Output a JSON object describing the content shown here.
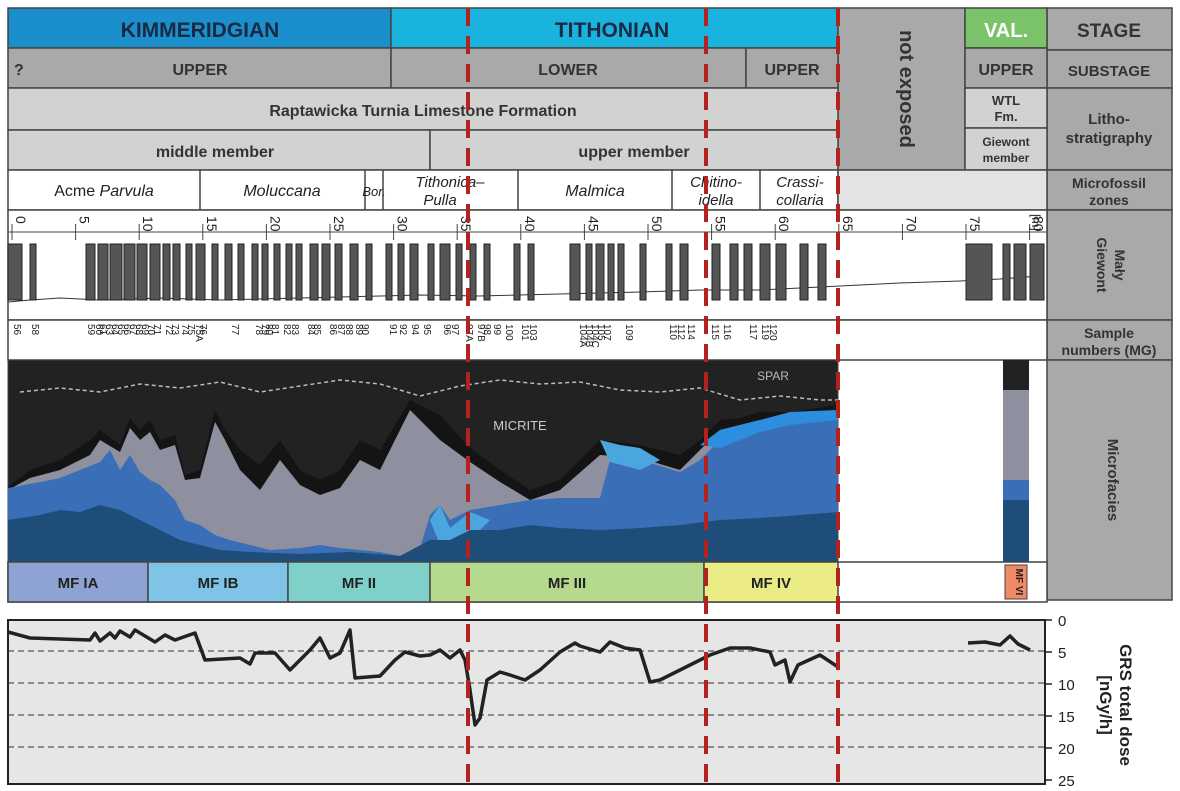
{
  "header": {
    "stages": [
      {
        "label": "KIMMERIDGIAN",
        "color": "#1a8fcc"
      },
      {
        "label": "TITHONIAN",
        "color": "#1ab3dd"
      },
      {
        "label": "VAL.",
        "color": "#7ac36a"
      }
    ],
    "not_exposed": "not exposed",
    "substages": [
      "?",
      "UPPER",
      "LOWER",
      "UPPER",
      "UPPER"
    ],
    "formation": "Raptawicka Turnia Limestone Formation",
    "wtl": [
      "WTL",
      "Fm."
    ],
    "members": [
      "middle member",
      "upper member"
    ],
    "giewont_member": [
      "Giewont",
      "member"
    ]
  },
  "right_column": {
    "stage": "STAGE",
    "substage": "SUBSTAGE",
    "litho": [
      "Litho-",
      "stratigraphy"
    ],
    "microfossil": [
      "Microfossil",
      "zones"
    ],
    "maly": [
      "Mały",
      "Giewont"
    ],
    "sample": [
      "Sample",
      "numbers (MG)"
    ],
    "microfacies": "Microfacies"
  },
  "zones": [
    {
      "label": "Acme ",
      "italic": "Parvula"
    },
    {
      "label": "",
      "italic": "Moluccana"
    },
    {
      "label": "",
      "italic": "Bor."
    },
    {
      "label": "",
      "italic": "Tithonica–",
      "italic2": "Pulla"
    },
    {
      "label": "",
      "italic": "Malmica"
    },
    {
      "label": "",
      "italic": "Chitino-",
      "italic2": "idella"
    },
    {
      "label": "",
      "italic": "Crassi-",
      "italic2": "collaria"
    }
  ],
  "scale": {
    "ticks": [
      "0",
      "5",
      "10",
      "15",
      "20",
      "25",
      "30",
      "35",
      "40",
      "45",
      "50",
      "55",
      "60",
      "65",
      "70",
      "75",
      "80"
    ],
    "unit": "[m]"
  },
  "samples": {
    "row1": [
      "56",
      "58",
      "59",
      "60",
      "61",
      "63",
      "64",
      "65",
      "66",
      "67",
      "68",
      "69",
      "70",
      "71",
      "72",
      "73",
      "74",
      "75",
      "75A",
      "76",
      "77",
      "78",
      "79",
      "80",
      "81",
      "82",
      "83",
      "84",
      "85",
      "86",
      "87",
      "88",
      "89",
      "90",
      "91",
      "92",
      "94",
      "95",
      "96",
      "97",
      "97A",
      "97B",
      "98",
      "99",
      "100",
      "101",
      "103",
      "104A",
      "104B",
      "104C",
      "105",
      "107",
      "109",
      "110",
      "112",
      "114",
      "115",
      "116",
      "117",
      "119",
      "120"
    ]
  },
  "microfacies_labels": {
    "micrite": "MICRITE",
    "spar": "SPAR"
  },
  "mf_boxes": [
    {
      "label": "MF IA",
      "color": "#8ea3d4"
    },
    {
      "label": "MF IB",
      "color": "#7fc3e6"
    },
    {
      "label": "MF II",
      "color": "#7fd0c9"
    },
    {
      "label": "MF III",
      "color": "#b5d98d"
    },
    {
      "label": "MF IV",
      "color": "#ecec86"
    },
    {
      "label": "MF VI",
      "color": "#f08a65"
    }
  ],
  "grs": {
    "title": "GRS total dose",
    "unit": "[nGy/h]",
    "axis": [
      "0",
      "5",
      "10",
      "15",
      "20",
      "25"
    ]
  }
}
